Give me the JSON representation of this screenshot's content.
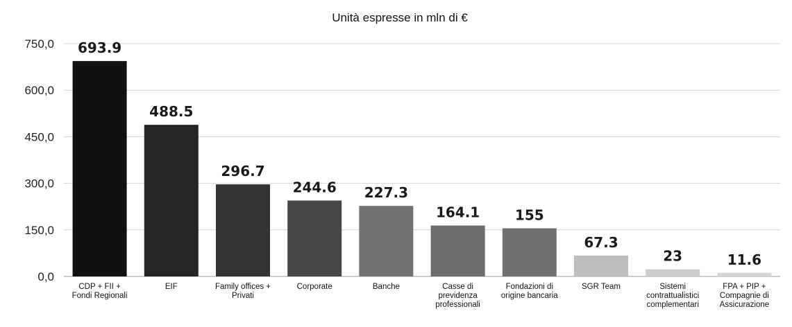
{
  "chart_data": {
    "type": "bar",
    "title": "Unità espresse in mln di €",
    "xlabel": "",
    "ylabel": "",
    "ylim": [
      0,
      750
    ],
    "yticks": [
      "0,0",
      "150,0",
      "300,0",
      "450,0",
      "600,0",
      "750,0"
    ],
    "grid": true,
    "categories": [
      "CDP + FII + Fondi Regionali",
      "EIF",
      "Family offices + Privati",
      "Corporate",
      "Banche",
      "Casse di previdenza professionali",
      "Fondazioni di origine bancaria",
      "SGR Team",
      "Sistemi contrattualistici complementari",
      "FPA + PIP + Compagnie di Assicurazione"
    ],
    "category_lines": [
      [
        "CDP + FII +",
        "Fondi Regionali"
      ],
      [
        "EIF"
      ],
      [
        "Family offices +",
        "Privati"
      ],
      [
        "Corporate"
      ],
      [
        "Banche"
      ],
      [
        "Casse di",
        "previdenza",
        "professionali"
      ],
      [
        "Fondazioni di",
        "origine bancaria"
      ],
      [
        "SGR Team"
      ],
      [
        "Sistemi",
        "contrattualistici",
        "complementari"
      ],
      [
        "FPA + PIP +",
        "Compagnie di",
        "Assicurazione"
      ]
    ],
    "values": [
      693.9,
      488.5,
      296.7,
      244.6,
      227.3,
      164.1,
      155,
      67.3,
      23,
      11.6
    ],
    "value_labels": [
      "693.9",
      "488.5",
      "296.7",
      "244.6",
      "227.3",
      "164.1",
      "155",
      "67.3",
      "23",
      "11.6"
    ],
    "colors": [
      "#111111",
      "#252525",
      "#333333",
      "#474747",
      "#727272",
      "#6c6c6c",
      "#707070",
      "#bdbdbd",
      "#cdcdcd",
      "#d4d4d4"
    ]
  }
}
